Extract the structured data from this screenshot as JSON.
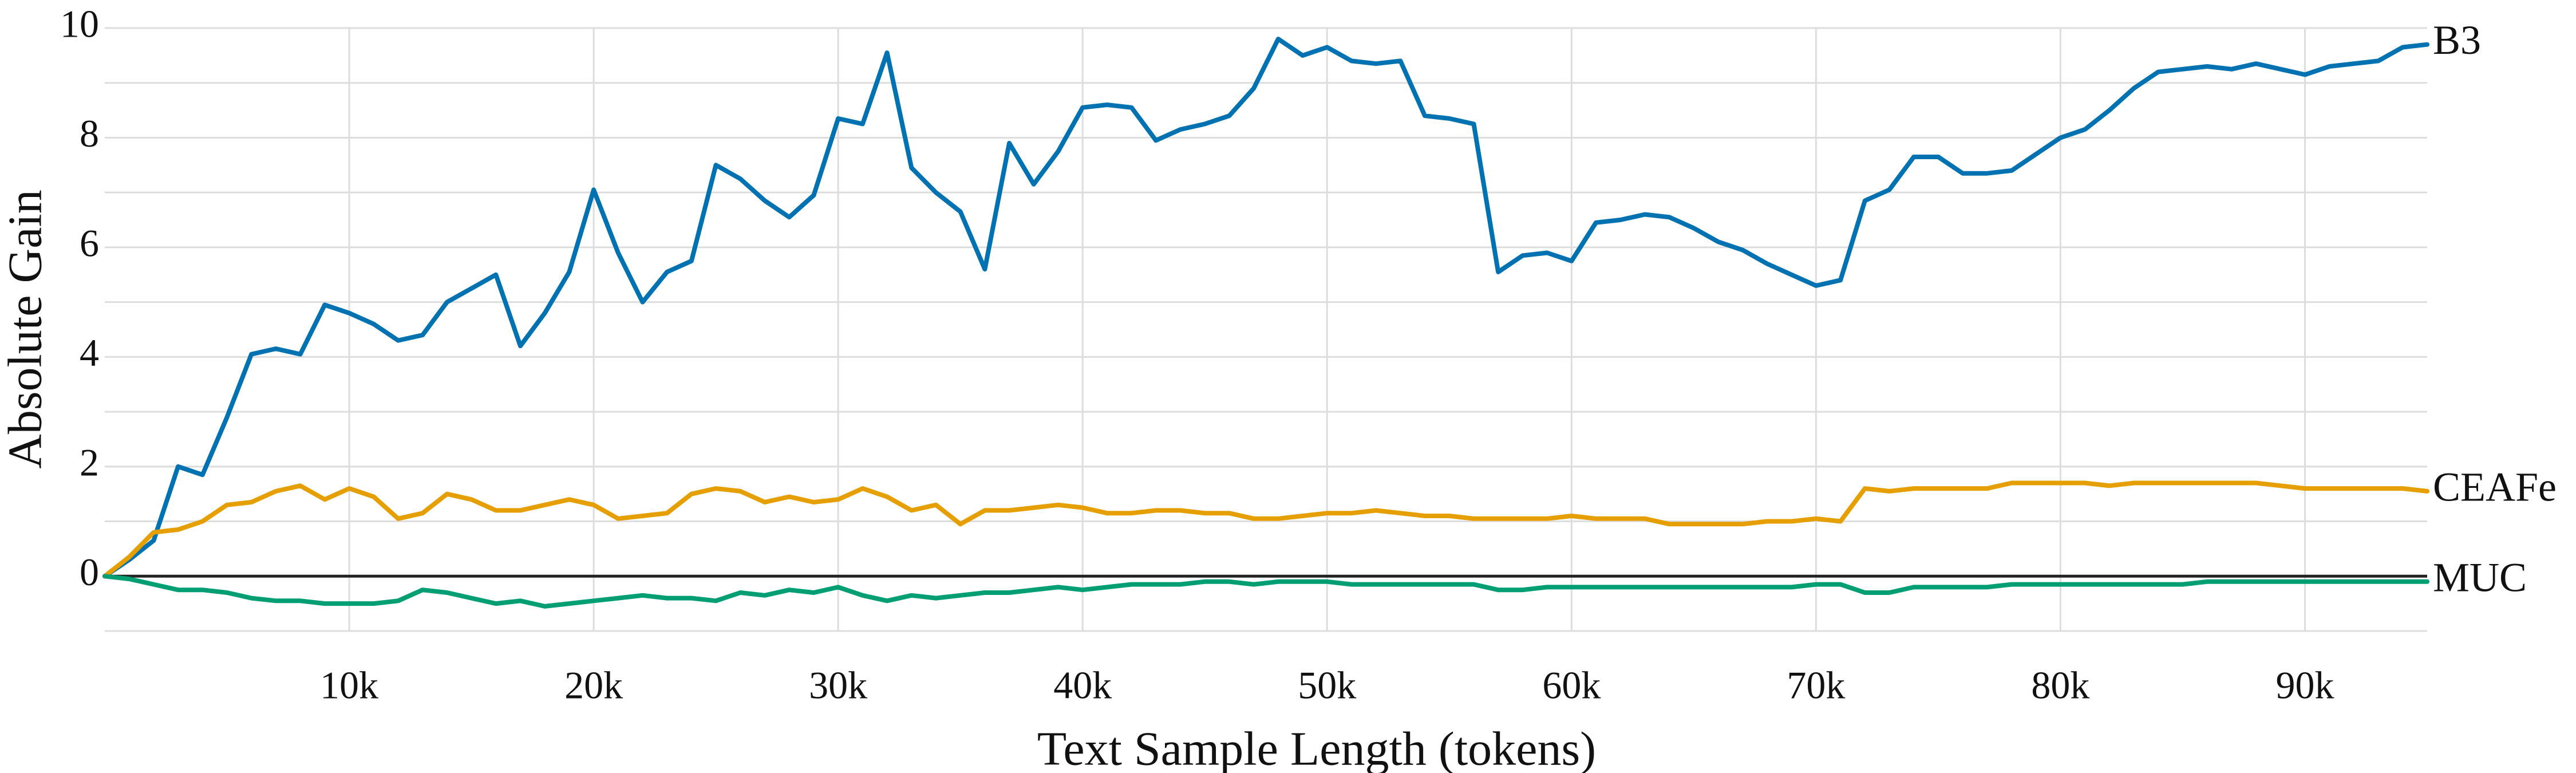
{
  "chart_data": {
    "type": "line",
    "xlabel": "Text Sample Length (tokens)",
    "ylabel": "Absolute Gain",
    "xlim": [
      0,
      95000
    ],
    "ylim": [
      -1,
      10
    ],
    "xticks": [
      {
        "value": 10000,
        "label": "10k"
      },
      {
        "value": 20000,
        "label": "20k"
      },
      {
        "value": 30000,
        "label": "30k"
      },
      {
        "value": 40000,
        "label": "40k"
      },
      {
        "value": 50000,
        "label": "50k"
      },
      {
        "value": 60000,
        "label": "60k"
      },
      {
        "value": 70000,
        "label": "70k"
      },
      {
        "value": 80000,
        "label": "80k"
      },
      {
        "value": 90000,
        "label": "90k"
      }
    ],
    "yticks": [
      0,
      2,
      4,
      6,
      8,
      10
    ],
    "y_minor_grid": [
      -1,
      1,
      3,
      5,
      7,
      9
    ],
    "grid": true,
    "x": [
      0,
      1000,
      2000,
      3000,
      4000,
      5000,
      6000,
      7000,
      8000,
      9000,
      10000,
      11000,
      12000,
      13000,
      14000,
      15000,
      16000,
      17000,
      18000,
      19000,
      20000,
      21000,
      22000,
      23000,
      24000,
      25000,
      26000,
      27000,
      28000,
      29000,
      30000,
      31000,
      32000,
      33000,
      34000,
      35000,
      36000,
      37000,
      38000,
      39000,
      40000,
      41000,
      42000,
      43000,
      44000,
      45000,
      46000,
      47000,
      48000,
      49000,
      50000,
      51000,
      52000,
      53000,
      54000,
      55000,
      56000,
      57000,
      58000,
      59000,
      60000,
      61000,
      62000,
      63000,
      64000,
      65000,
      66000,
      67000,
      68000,
      69000,
      70000,
      71000,
      72000,
      73000,
      74000,
      75000,
      76000,
      77000,
      78000,
      79000,
      80000,
      81000,
      82000,
      83000,
      84000,
      85000,
      86000,
      87000,
      88000,
      89000,
      90000,
      91000,
      92000,
      93000,
      94000,
      95000
    ],
    "series": [
      {
        "name": "B3",
        "color": "#0072b2",
        "values": [
          0,
          0.3,
          0.65,
          2.0,
          1.85,
          2.9,
          4.05,
          4.15,
          4.05,
          4.95,
          4.8,
          4.6,
          4.3,
          4.4,
          5.0,
          5.25,
          5.5,
          4.2,
          4.8,
          5.55,
          7.05,
          5.9,
          5.0,
          5.55,
          5.75,
          7.5,
          7.25,
          6.85,
          6.55,
          6.95,
          8.35,
          8.25,
          9.55,
          7.45,
          7.0,
          6.65,
          5.6,
          7.9,
          7.15,
          7.75,
          8.55,
          8.6,
          8.55,
          7.95,
          8.15,
          8.25,
          8.4,
          8.9,
          9.8,
          9.5,
          9.65,
          9.4,
          9.35,
          9.4,
          8.4,
          8.35,
          8.25,
          5.55,
          5.85,
          5.9,
          5.75,
          6.45,
          6.5,
          6.6,
          6.55,
          6.35,
          6.1,
          5.95,
          5.7,
          5.5,
          5.3,
          5.4,
          6.85,
          7.05,
          7.65,
          7.65,
          7.35,
          7.35,
          7.4,
          7.7,
          8.0,
          8.15,
          8.5,
          8.9,
          9.2,
          9.25,
          9.3,
          9.25,
          9.35,
          9.25,
          9.15,
          9.3,
          9.35,
          9.4,
          9.65,
          9.7
        ]
      },
      {
        "name": "CEAFe",
        "color": "#e69f00",
        "values": [
          0,
          0.35,
          0.8,
          0.85,
          1.0,
          1.3,
          1.35,
          1.55,
          1.65,
          1.4,
          1.6,
          1.45,
          1.05,
          1.15,
          1.5,
          1.4,
          1.2,
          1.2,
          1.3,
          1.4,
          1.3,
          1.05,
          1.1,
          1.15,
          1.5,
          1.6,
          1.55,
          1.35,
          1.45,
          1.35,
          1.4,
          1.6,
          1.45,
          1.2,
          1.3,
          0.95,
          1.2,
          1.2,
          1.25,
          1.3,
          1.25,
          1.15,
          1.15,
          1.2,
          1.2,
          1.15,
          1.15,
          1.05,
          1.05,
          1.1,
          1.15,
          1.15,
          1.2,
          1.15,
          1.1,
          1.1,
          1.05,
          1.05,
          1.05,
          1.05,
          1.1,
          1.05,
          1.05,
          1.05,
          0.95,
          0.95,
          0.95,
          0.95,
          1.0,
          1.0,
          1.05,
          1.0,
          1.6,
          1.55,
          1.6,
          1.6,
          1.6,
          1.6,
          1.7,
          1.7,
          1.7,
          1.7,
          1.65,
          1.7,
          1.7,
          1.7,
          1.7,
          1.7,
          1.7,
          1.65,
          1.6,
          1.6,
          1.6,
          1.6,
          1.6,
          1.55
        ]
      },
      {
        "name": "MUC",
        "color": "#009e73",
        "values": [
          0,
          -0.05,
          -0.15,
          -0.25,
          -0.25,
          -0.3,
          -0.4,
          -0.45,
          -0.45,
          -0.5,
          -0.5,
          -0.5,
          -0.45,
          -0.25,
          -0.3,
          -0.4,
          -0.5,
          -0.45,
          -0.55,
          -0.5,
          -0.45,
          -0.4,
          -0.35,
          -0.4,
          -0.4,
          -0.45,
          -0.3,
          -0.35,
          -0.25,
          -0.3,
          -0.2,
          -0.35,
          -0.45,
          -0.35,
          -0.4,
          -0.35,
          -0.3,
          -0.3,
          -0.25,
          -0.2,
          -0.25,
          -0.2,
          -0.15,
          -0.15,
          -0.15,
          -0.1,
          -0.1,
          -0.15,
          -0.1,
          -0.1,
          -0.1,
          -0.15,
          -0.15,
          -0.15,
          -0.15,
          -0.15,
          -0.15,
          -0.25,
          -0.25,
          -0.2,
          -0.2,
          -0.2,
          -0.2,
          -0.2,
          -0.2,
          -0.2,
          -0.2,
          -0.2,
          -0.2,
          -0.2,
          -0.15,
          -0.15,
          -0.3,
          -0.3,
          -0.2,
          -0.2,
          -0.2,
          -0.2,
          -0.15,
          -0.15,
          -0.15,
          -0.15,
          -0.15,
          -0.15,
          -0.15,
          -0.15,
          -0.1,
          -0.1,
          -0.1,
          -0.1,
          -0.1,
          -0.1,
          -0.1,
          -0.1,
          -0.1,
          -0.1
        ]
      }
    ]
  }
}
